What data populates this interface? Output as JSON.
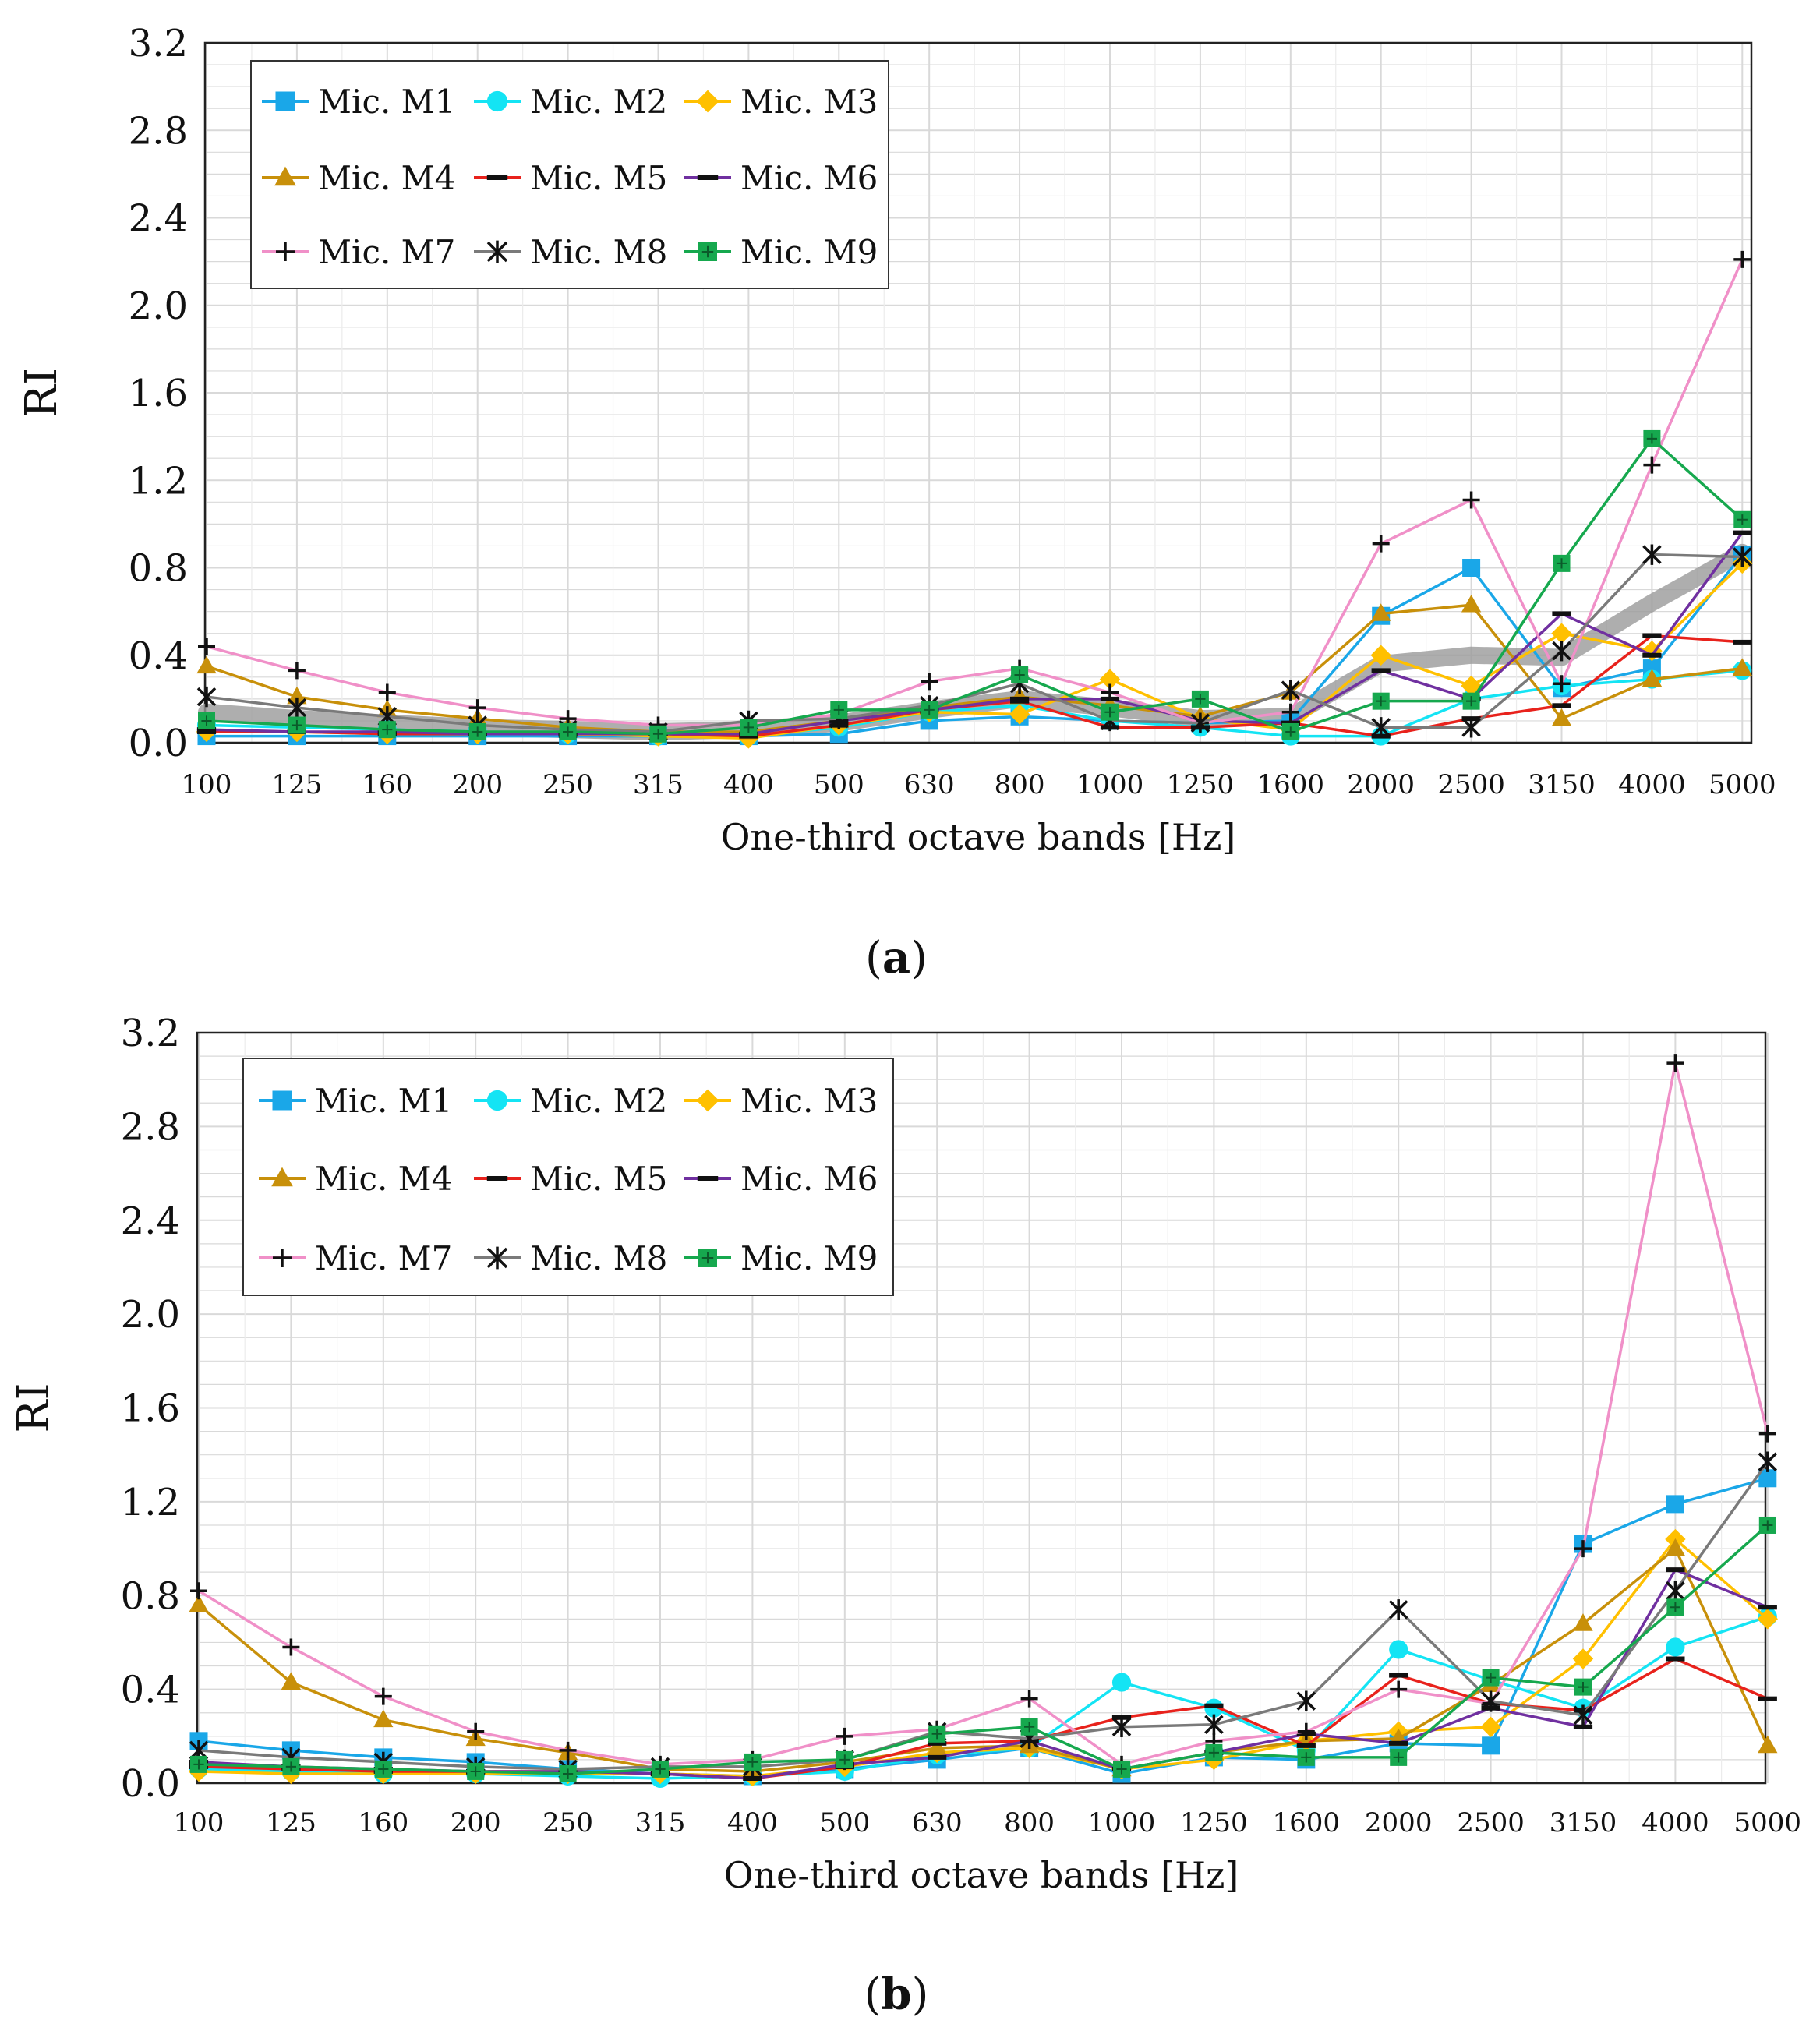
{
  "colors": {
    "M1": "#1aa7e8",
    "M2": "#14e4f4",
    "M3": "#ffc000",
    "M4": "#c8900a",
    "M5": "#e8221c",
    "M6": "#7030a0",
    "M7": "#f090c8",
    "M8": "#7a7a7a",
    "M9": "#16a84e",
    "trend": "#9a9a9a",
    "grid": "#d9d9d9",
    "axis": "#222222"
  },
  "icons": {
    "M1": "square",
    "M2": "circle",
    "M3": "diamond",
    "M4": "triangle",
    "M5": "dash",
    "M6": "dash",
    "M7": "plus",
    "M8": "star",
    "M9": "square-cross"
  },
  "chart_data": [
    {
      "type": "line",
      "panel_label": "a",
      "xlabel": "One-third octave bands [Hz]",
      "ylabel": "RI",
      "ylim": [
        0,
        3.2
      ],
      "yticks": [
        "0.0",
        "0.4",
        "0.8",
        "1.2",
        "1.6",
        "2.0",
        "2.4",
        "2.8",
        "3.2"
      ],
      "grid": true,
      "legend_position": "top-left",
      "categories": [
        "100",
        "125",
        "160",
        "200",
        "250",
        "315",
        "400",
        "500",
        "630",
        "800",
        "1000",
        "1250",
        "1600",
        "2000",
        "2500",
        "3150",
        "4000",
        "5000"
      ],
      "series": [
        {
          "name": "Mic. M1",
          "key": "M1",
          "values": [
            0.03,
            0.03,
            0.03,
            0.03,
            0.03,
            0.03,
            0.03,
            0.04,
            0.1,
            0.12,
            0.1,
            0.09,
            0.1,
            0.58,
            0.8,
            0.25,
            0.34,
            0.86
          ]
        },
        {
          "name": "Mic. M2",
          "key": "M2",
          "values": [
            0.08,
            0.07,
            0.06,
            0.05,
            0.04,
            0.03,
            0.03,
            0.07,
            0.14,
            0.17,
            0.1,
            0.07,
            0.03,
            0.03,
            0.2,
            0.26,
            0.29,
            0.33
          ]
        },
        {
          "name": "Mic. M3",
          "key": "M3",
          "values": [
            0.05,
            0.05,
            0.04,
            0.04,
            0.04,
            0.03,
            0.02,
            0.08,
            0.14,
            0.13,
            0.29,
            0.11,
            0.06,
            0.4,
            0.26,
            0.5,
            0.42,
            0.82
          ]
        },
        {
          "name": "Mic. M4",
          "key": "M4",
          "values": [
            0.35,
            0.21,
            0.15,
            0.11,
            0.07,
            0.05,
            0.05,
            0.1,
            0.16,
            0.21,
            0.17,
            0.12,
            0.23,
            0.59,
            0.63,
            0.11,
            0.29,
            0.34
          ]
        },
        {
          "name": "Mic. M5",
          "key": "M5",
          "values": [
            0.05,
            0.05,
            0.04,
            0.04,
            0.04,
            0.04,
            0.03,
            0.08,
            0.15,
            0.19,
            0.07,
            0.07,
            0.09,
            0.03,
            0.11,
            0.17,
            0.49,
            0.46
          ]
        },
        {
          "name": "Mic. M6",
          "key": "M6",
          "values": [
            0.06,
            0.05,
            0.05,
            0.04,
            0.04,
            0.04,
            0.04,
            0.1,
            0.15,
            0.2,
            0.2,
            0.1,
            0.09,
            0.33,
            0.2,
            0.59,
            0.4,
            0.96
          ]
        },
        {
          "name": "Mic. M7",
          "key": "M7",
          "values": [
            0.44,
            0.33,
            0.23,
            0.16,
            0.11,
            0.08,
            0.08,
            0.13,
            0.28,
            0.34,
            0.23,
            0.09,
            0.14,
            0.91,
            1.11,
            0.27,
            1.27,
            2.21
          ]
        },
        {
          "name": "Mic. M8",
          "key": "M8",
          "values": [
            0.21,
            0.16,
            0.12,
            0.08,
            0.06,
            0.05,
            0.1,
            0.11,
            0.17,
            0.27,
            0.1,
            0.09,
            0.24,
            0.07,
            0.07,
            0.42,
            0.86,
            0.85
          ]
        },
        {
          "name": "Mic. M9",
          "key": "M9",
          "values": [
            0.1,
            0.08,
            0.06,
            0.05,
            0.05,
            0.04,
            0.07,
            0.15,
            0.15,
            0.31,
            0.14,
            0.2,
            0.05,
            0.19,
            0.19,
            0.82,
            1.39,
            1.02
          ]
        }
      ],
      "trend": [
        0.14,
        0.11,
        0.09,
        0.07,
        0.06,
        0.05,
        0.06,
        0.09,
        0.15,
        0.2,
        0.16,
        0.11,
        0.12,
        0.36,
        0.4,
        0.39,
        0.64,
        0.87
      ]
    },
    {
      "type": "line",
      "panel_label": "b",
      "xlabel": "One-third octave bands [Hz]",
      "ylabel": "RI",
      "ylim": [
        0,
        3.2
      ],
      "yticks": [
        "0.0",
        "0.4",
        "0.8",
        "1.2",
        "1.6",
        "2.0",
        "2.4",
        "2.8",
        "3.2"
      ],
      "grid": true,
      "legend_position": "top-left",
      "categories": [
        "100",
        "125",
        "160",
        "200",
        "250",
        "315",
        "400",
        "500",
        "630",
        "800",
        "1000",
        "1250",
        "1600",
        "2000",
        "2500",
        "3150",
        "4000",
        "5000"
      ],
      "series": [
        {
          "name": "Mic. M1",
          "key": "M1",
          "values": [
            0.18,
            0.14,
            0.11,
            0.09,
            0.06,
            0.04,
            0.03,
            0.06,
            0.1,
            0.15,
            0.04,
            0.11,
            0.1,
            0.17,
            0.16,
            1.02,
            1.19,
            1.3
          ]
        },
        {
          "name": "Mic. M2",
          "key": "M2",
          "values": [
            0.06,
            0.05,
            0.04,
            0.04,
            0.03,
            0.02,
            0.03,
            0.05,
            0.12,
            0.15,
            0.43,
            0.32,
            0.14,
            0.57,
            0.44,
            0.32,
            0.58,
            0.71
          ]
        },
        {
          "name": "Mic. M3",
          "key": "M3",
          "values": [
            0.05,
            0.04,
            0.04,
            0.04,
            0.04,
            0.04,
            0.03,
            0.07,
            0.13,
            0.15,
            0.06,
            0.1,
            0.18,
            0.22,
            0.24,
            0.53,
            1.04,
            0.7
          ]
        },
        {
          "name": "Mic. M4",
          "key": "M4",
          "values": [
            0.76,
            0.43,
            0.27,
            0.19,
            0.13,
            0.06,
            0.05,
            0.09,
            0.15,
            0.16,
            0.06,
            0.13,
            0.18,
            0.19,
            0.42,
            0.68,
            1.0,
            0.16
          ]
        },
        {
          "name": "Mic. M5",
          "key": "M5",
          "values": [
            0.07,
            0.06,
            0.05,
            0.05,
            0.05,
            0.04,
            0.02,
            0.07,
            0.17,
            0.18,
            0.28,
            0.33,
            0.16,
            0.46,
            0.34,
            0.31,
            0.53,
            0.36
          ]
        },
        {
          "name": "Mic. M6",
          "key": "M6",
          "values": [
            0.09,
            0.07,
            0.06,
            0.05,
            0.05,
            0.04,
            0.02,
            0.08,
            0.11,
            0.18,
            0.06,
            0.13,
            0.21,
            0.17,
            0.32,
            0.24,
            0.91,
            0.75
          ]
        },
        {
          "name": "Mic. M7",
          "key": "M7",
          "values": [
            0.82,
            0.58,
            0.37,
            0.22,
            0.14,
            0.08,
            0.1,
            0.2,
            0.23,
            0.36,
            0.08,
            0.18,
            0.22,
            0.4,
            0.34,
            1.0,
            3.07,
            1.49
          ]
        },
        {
          "name": "Mic. M8",
          "key": "M8",
          "values": [
            0.14,
            0.11,
            0.09,
            0.07,
            0.06,
            0.07,
            0.07,
            0.1,
            0.22,
            0.19,
            0.24,
            0.25,
            0.35,
            0.74,
            0.35,
            0.29,
            0.82,
            1.37
          ]
        },
        {
          "name": "Mic. M9",
          "key": "M9",
          "values": [
            0.08,
            0.07,
            0.06,
            0.05,
            0.04,
            0.06,
            0.09,
            0.1,
            0.21,
            0.24,
            0.06,
            0.13,
            0.11,
            0.11,
            0.45,
            0.41,
            0.75,
            1.1
          ]
        }
      ],
      "trend": null
    }
  ]
}
